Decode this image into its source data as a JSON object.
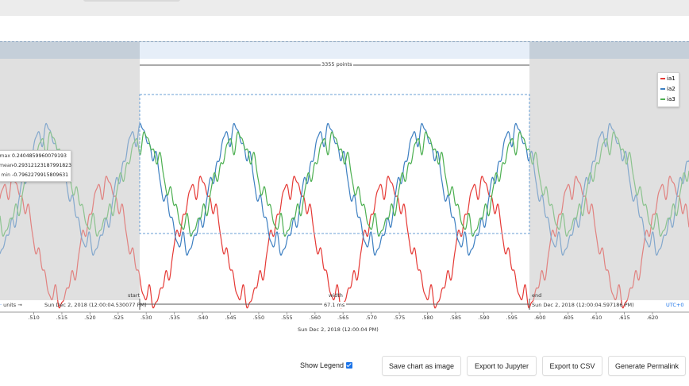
{
  "points_label": "3355 points",
  "legend": [
    {
      "name": "ia1",
      "color": "#e53935"
    },
    {
      "name": "ia2",
      "color": "#3d7fc1"
    },
    {
      "name": "ia3",
      "color": "#4caf50"
    }
  ],
  "tooltip": {
    "max_label": "max",
    "max_value": "0.2404859960079193",
    "mean_label": "mean",
    "mean_value": "-0.29312123187991823",
    "min_label": "min",
    "min_value": "-0.7962279915809631"
  },
  "range": {
    "start_label": "start",
    "start_value": "Sun Dec 2, 2018 (12:00:04.530077 PM)",
    "width_label": "width",
    "width_value": "67.1 ms",
    "end_label": "end",
    "end_value": "Sun Dec 2, 2018 (12:00:04.597186 PM)",
    "units_label": "units →",
    "timezone": "UTC+0"
  },
  "x_axis_title": "Sun Dec 2, 2018 (12:00:04 PM)",
  "chart_data": {
    "type": "line",
    "x_ticks": [
      ".510",
      ".515",
      ".520",
      ".525",
      ".530",
      ".535",
      ".540",
      ".545",
      ".550",
      ".555",
      ".560",
      ".565",
      ".570",
      ".575",
      ".580",
      ".585",
      ".590",
      ".595",
      ".600",
      ".605",
      ".610",
      ".615",
      ".620"
    ],
    "xlim": [
      0.504,
      0.6265
    ],
    "ylim": [
      -1.0,
      1.0
    ],
    "period": 0.0167,
    "series": [
      {
        "name": "ia1",
        "color": "#e53935",
        "peak_at": 0.5395,
        "amplitude": 0.55,
        "offset": -0.45
      },
      {
        "name": "ia2",
        "color": "#3d7fc1",
        "peak_at": 0.5455,
        "amplitude": 0.55,
        "offset": 0.05
      },
      {
        "name": "ia3",
        "color": "#4caf50",
        "peak_at": 0.5295,
        "amplitude": 0.42,
        "offset": 0.1
      }
    ]
  },
  "controls": {
    "show_legend_label": "Show Legend",
    "save_image": "Save chart as image",
    "export_jupyter": "Export to Jupyter",
    "export_csv": "Export to CSV",
    "permalink": "Generate Permalink"
  }
}
